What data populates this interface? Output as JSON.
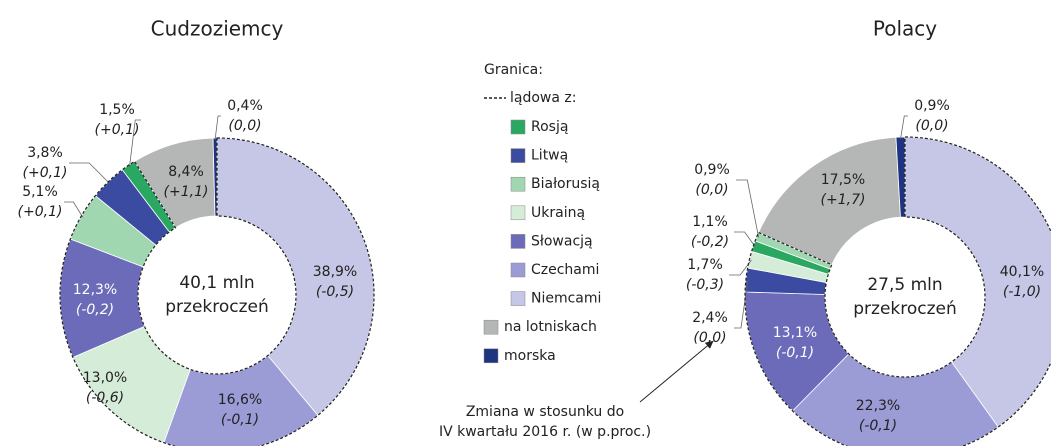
{
  "chart_data": [
    {
      "type": "donut",
      "title": "Cudzoziemcy",
      "categories": [
        "Niemcami",
        "Czechami",
        "Ukrainą",
        "Słowacją",
        "Białorusią",
        "Litwą",
        "Rosją",
        "na lotniskach",
        "morska"
      ],
      "values": [
        38.9,
        16.6,
        13.0,
        12.3,
        5.1,
        3.8,
        1.5,
        8.4,
        0.4
      ],
      "value_labels": [
        "38,9%",
        "16,6%",
        "13,0%",
        "12,3%",
        "5,1%",
        "3,8%",
        "1,5%",
        "8,4%",
        "0,4%"
      ],
      "changes": [
        -0.5,
        -0.1,
        -0.6,
        -0.2,
        0.1,
        0.1,
        0.1,
        1.1,
        0.0
      ],
      "change_labels": [
        "(-0,5)",
        "(-0,1)",
        "(-0,6)",
        "(-0,2)",
        "(+0,1)",
        "(+0,1)",
        "(+0,1)",
        "(+1,1)",
        "(0,0)"
      ],
      "colors": [
        "#c6c6e6",
        "#9b9bd6",
        "#d5edd8",
        "#6b6bb9",
        "#a0d6b0",
        "#3b4ba1",
        "#2aa862",
        "#b4b7b6",
        "#1f3481"
      ],
      "total": 40.1,
      "total_label": "40,1 mln",
      "center_note": "przekroczeń"
    },
    {
      "type": "donut",
      "title": "Polacy",
      "categories": [
        "Niemcami",
        "Czechami",
        "Słowacją",
        "Litwą",
        "Ukrainą",
        "Rosją",
        "Białorusią",
        "na lotniskach",
        "morska"
      ],
      "values": [
        40.1,
        22.3,
        13.1,
        2.4,
        1.7,
        1.1,
        0.9,
        17.5,
        0.9
      ],
      "value_labels": [
        "40,1%",
        "22,3%",
        "13,1%",
        "2,4%",
        "1,7%",
        "1,1%",
        "0,9%",
        "17,5%",
        "0,9%"
      ],
      "changes": [
        -1.0,
        -0.1,
        -0.1,
        0.0,
        -0.3,
        -0.2,
        0.0,
        1.7,
        0.0
      ],
      "change_labels": [
        "(-1,0)",
        "(-0,1)",
        "(-0,1)",
        "(0,0)",
        "(-0,3)",
        "(-0,2)",
        "(0,0)",
        "(+1,7)",
        "(0,0)"
      ],
      "colors": [
        "#c6c6e6",
        "#9b9bd6",
        "#6b6bb9",
        "#3b4ba1",
        "#d5edd8",
        "#2aa862",
        "#a0d6b0",
        "#b4b7b6",
        "#1f3481"
      ],
      "total": 27.5,
      "total_label": "27,5 mln",
      "center_note": "przekroczeń"
    }
  ],
  "legend": {
    "title": "Granica:",
    "group": "lądowa z:",
    "items": [
      {
        "name": "Rosją",
        "color": "#2aa862"
      },
      {
        "name": "Litwą",
        "color": "#3b4ba1"
      },
      {
        "name": "Białorusią",
        "color": "#a0d6b0"
      },
      {
        "name": "Ukrainą",
        "color": "#d5edd8"
      },
      {
        "name": "Słowacją",
        "color": "#6b6bb9"
      },
      {
        "name": "Czechami",
        "color": "#9b9bd6"
      },
      {
        "name": "Niemcami",
        "color": "#c6c6e6"
      },
      {
        "name": "na lotniskach",
        "color": "#b4b7b6"
      },
      {
        "name": "morska",
        "color": "#1f3481"
      }
    ]
  },
  "annotation": [
    "Zmiana w stosunku do",
    "IV kwartału 2016 r. (w p.proc.)"
  ]
}
